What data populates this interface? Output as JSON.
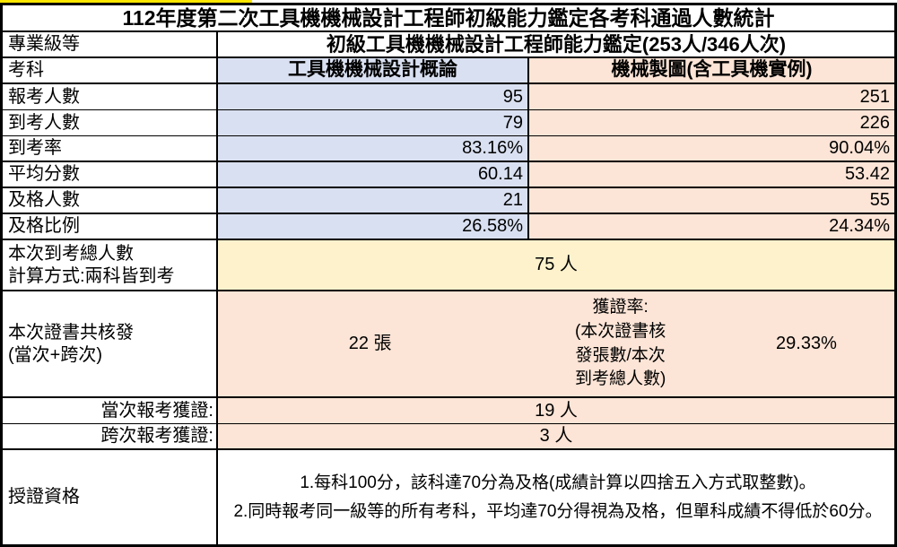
{
  "title": "112年度第二次工具機機械設計工程師初級能力鑑定各考科通過人數統計",
  "level_row": {
    "label": "專業級等",
    "value": "初級工具機機械設計工程師能力鑑定(253人/346人次)"
  },
  "subject_row": {
    "label": "考科",
    "col1": "工具機機械設計概論",
    "col2": "機械製圖(含工具機實例)"
  },
  "metrics": [
    {
      "label": "報考人數",
      "col1": "95",
      "col2": "251"
    },
    {
      "label": "到考人數",
      "col1": "79",
      "col2": "226"
    },
    {
      "label": "到考率",
      "col1": "83.16%",
      "col2": "90.04%"
    },
    {
      "label": "平均分數",
      "col1": "60.14",
      "col2": "53.42"
    },
    {
      "label": "及格人數",
      "col1": "21",
      "col2": "55"
    },
    {
      "label": "及格比例",
      "col1": "26.58%",
      "col2": "24.34%"
    }
  ],
  "attendance_row": {
    "label": "本次到考總人數\n計算方式:兩科皆到考",
    "value": "75 人"
  },
  "cert_row": {
    "label": "本次證書共核發\n(當次+跨次)",
    "count": "22 張",
    "rate_note": "獲證率:\n(本次證書核\n發張數/本次\n到考總人數)",
    "rate_value": "29.33%"
  },
  "current_row": {
    "label": "當次報考獲證:",
    "value": "19 人"
  },
  "cross_row": {
    "label": "跨次報考獲證:",
    "value": "3 人"
  },
  "qualification_row": {
    "label": "授證資格",
    "value": "1.每科100分，該科達70分為及格(成績計算以四捨五入方式取整數)。\n2.同時報考同一級等的所有考科，平均達70分得視為及格，但單科成績不得低於60分。"
  },
  "colors": {
    "column1_fill": "#d9e0f1",
    "column2_fill": "#fce4d6",
    "total_fill": "#fdf2cc",
    "top_strip": "#ffe600",
    "border": "#000000"
  }
}
